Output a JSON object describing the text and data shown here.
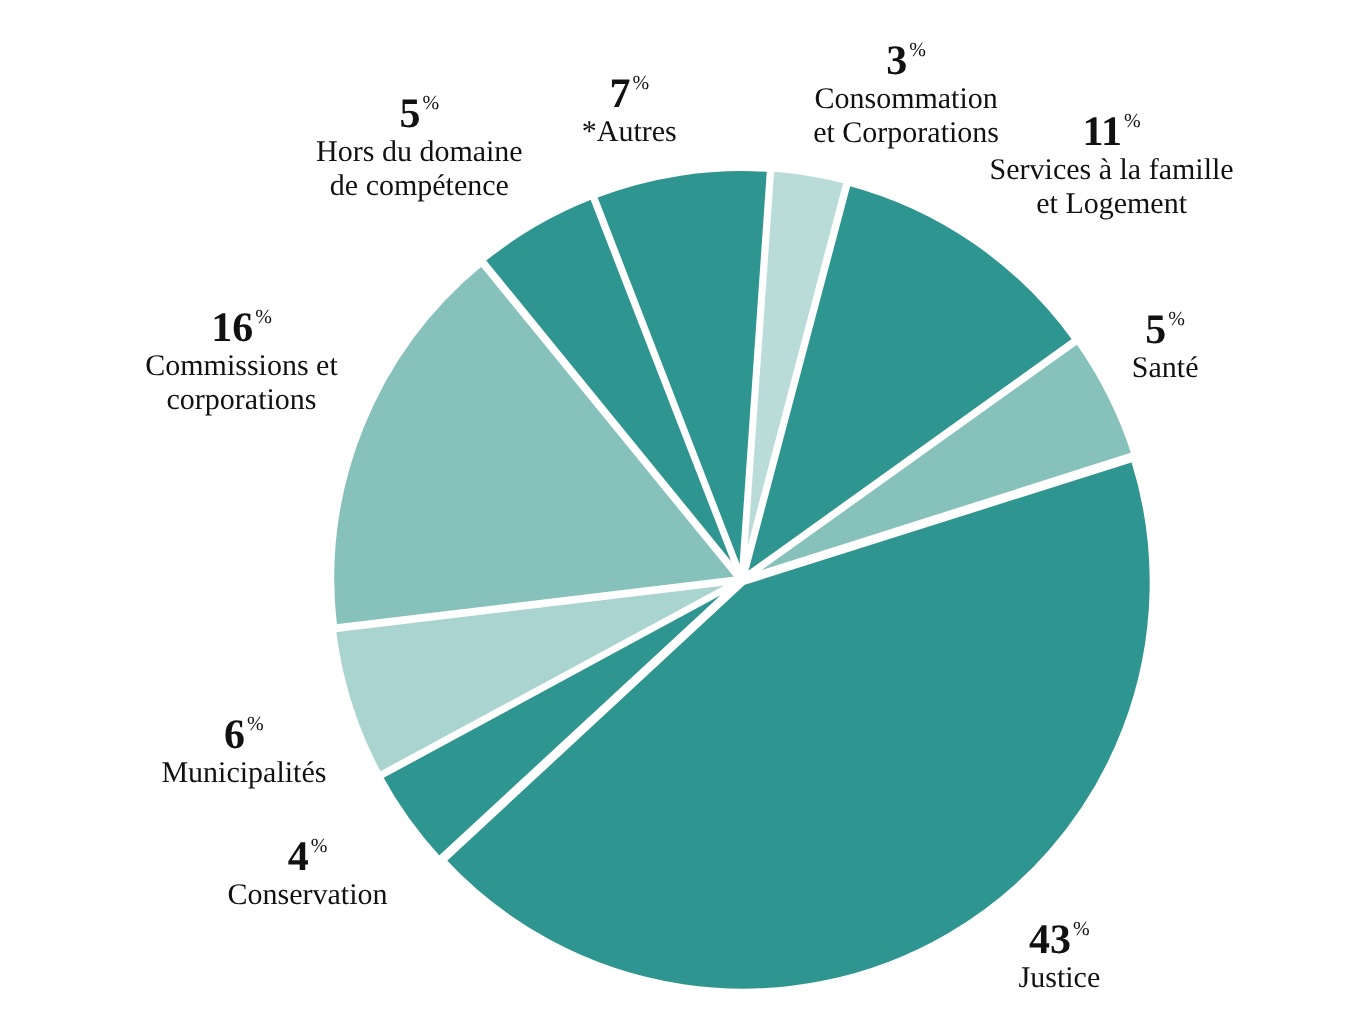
{
  "chart_data": {
    "type": "pie",
    "categories": [
      "Consommation\net Corporations",
      "Services à la famille\net Logement",
      "Santé",
      "Justice",
      "Conservation",
      "Municipalités",
      "Commissions et\ncorporations",
      "Hors du domaine\nde compétence",
      "*Autres"
    ],
    "values": [
      3,
      11,
      5,
      43,
      4,
      6,
      16,
      5,
      7
    ],
    "colors": [
      "#b9dcd8",
      "#2f9590",
      "#86c1bc",
      "#2f9590",
      "#2f9590",
      "#aad4d0",
      "#86c1bc",
      "#2f9590",
      "#2f9590"
    ],
    "value_labels": [
      "3$^{%}$",
      "11$^{%}$",
      "5$^{%}$",
      "43$^{%}$",
      "4$^{%}$",
      "6$^{%}$",
      "16$^{%}$",
      "5$^{%}$",
      "7$^{%}$"
    ],
    "legend": false
  }
}
